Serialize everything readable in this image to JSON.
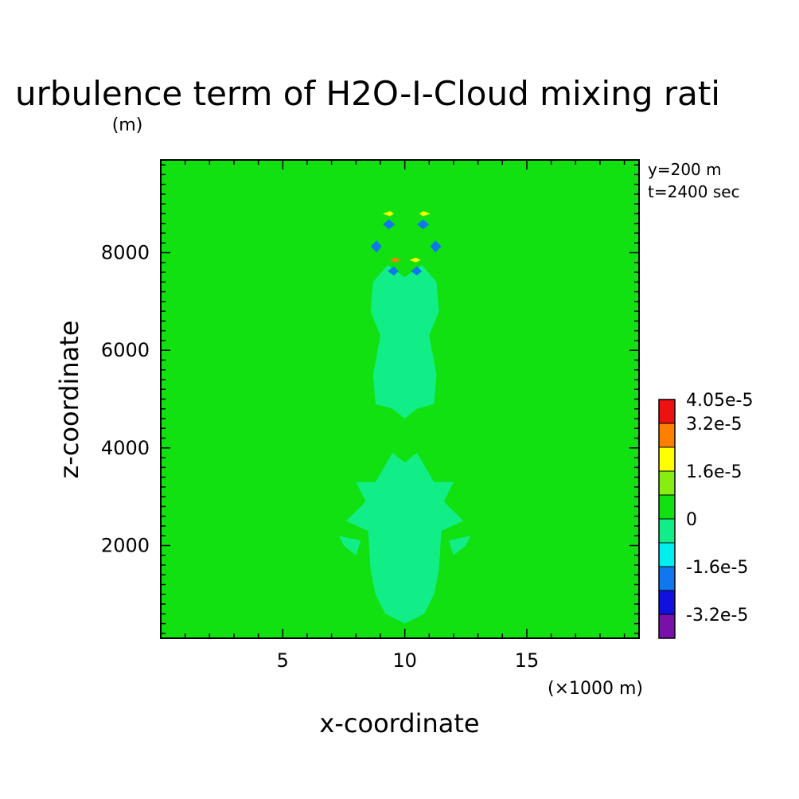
{
  "chart_data": {
    "type": "heatmap",
    "title": "urbulence term of H2O-I-Cloud mixing rati",
    "title_units": "(m)",
    "xlabel": "x-coordinate",
    "ylabel": "z-coordinate",
    "x_units": "(×1000 m)",
    "info": [
      "y=200 m",
      "t=2400 sec"
    ],
    "xlim": [
      0,
      19.6
    ],
    "ylim": [
      100,
      9900
    ],
    "x_ticks": [
      5,
      10,
      15
    ],
    "x_tick_labels": [
      "5",
      "10",
      "15"
    ],
    "y_ticks": [
      2000,
      4000,
      6000,
      8000
    ],
    "y_tick_labels": [
      "2000",
      "4000",
      "6000",
      "8000"
    ],
    "background_level_color": "#11e011",
    "colorbar": {
      "levels": [
        {
          "label": "4.05e-5",
          "color": "#ee1111"
        },
        {
          "label": "3.2e-5",
          "color": "#ff7f00"
        },
        {
          "label": "",
          "color": "#ffff00"
        },
        {
          "label": "1.6e-5",
          "color": "#88ee11"
        },
        {
          "label": "",
          "color": "#11e011"
        },
        {
          "label": "0",
          "color": "#11ee88"
        },
        {
          "label": "",
          "color": "#00eeee"
        },
        {
          "label": "-1.6e-5",
          "color": "#1177ee"
        },
        {
          "label": "",
          "color": "#1111dd"
        },
        {
          "label": "-3.2e-5",
          "color": "#7711aa"
        }
      ]
    },
    "features": [
      {
        "name": "upper-plume",
        "color": "#11ee88",
        "points": [
          [
            8.7,
            7400
          ],
          [
            9.3,
            7750
          ],
          [
            10.0,
            7500
          ],
          [
            10.7,
            7750
          ],
          [
            11.3,
            7400
          ],
          [
            11.4,
            6800
          ],
          [
            11.0,
            6300
          ],
          [
            11.3,
            5500
          ],
          [
            11.2,
            4900
          ],
          [
            10.5,
            4800
          ],
          [
            10.0,
            4600
          ],
          [
            9.5,
            4800
          ],
          [
            8.8,
            4900
          ],
          [
            8.7,
            5500
          ],
          [
            9.0,
            6300
          ],
          [
            8.6,
            6800
          ]
        ]
      },
      {
        "name": "lower-plume",
        "color": "#11ee88",
        "points": [
          [
            9.5,
            3900
          ],
          [
            10.0,
            3700
          ],
          [
            10.5,
            3900
          ],
          [
            11.2,
            3300
          ],
          [
            12.0,
            3300
          ],
          [
            11.6,
            2900
          ],
          [
            12.4,
            2500
          ],
          [
            11.5,
            2300
          ],
          [
            11.4,
            1500
          ],
          [
            11.2,
            1000
          ],
          [
            10.8,
            600
          ],
          [
            10.0,
            400
          ],
          [
            9.2,
            600
          ],
          [
            8.8,
            1000
          ],
          [
            8.6,
            1500
          ],
          [
            8.5,
            2300
          ],
          [
            7.6,
            2500
          ],
          [
            8.4,
            2900
          ],
          [
            8.0,
            3300
          ],
          [
            8.8,
            3300
          ]
        ]
      },
      {
        "name": "left-side-lobe",
        "color": "#11ee88",
        "points": [
          [
            7.3,
            2200
          ],
          [
            8.2,
            2100
          ],
          [
            8.0,
            1800
          ],
          [
            7.5,
            2000
          ]
        ]
      },
      {
        "name": "right-side-lobe",
        "color": "#11ee88",
        "points": [
          [
            12.7,
            2200
          ],
          [
            11.8,
            2100
          ],
          [
            12.0,
            1800
          ],
          [
            12.5,
            2000
          ]
        ]
      },
      {
        "name": "upper-cell-left-warm",
        "color": "#ffff00",
        "points": [
          [
            9.1,
            8800
          ],
          [
            9.4,
            8850
          ],
          [
            9.55,
            8800
          ],
          [
            9.4,
            8750
          ]
        ]
      },
      {
        "name": "upper-cell-left-cold",
        "color": "#1177ee",
        "points": [
          [
            9.1,
            8580
          ],
          [
            9.35,
            8680
          ],
          [
            9.6,
            8580
          ],
          [
            9.35,
            8480
          ]
        ]
      },
      {
        "name": "upper-cell-right-warm",
        "color": "#ffff00",
        "points": [
          [
            10.6,
            8800
          ],
          [
            10.75,
            8850
          ],
          [
            11.05,
            8800
          ],
          [
            10.75,
            8750
          ]
        ]
      },
      {
        "name": "upper-cell-right-cold",
        "color": "#1177ee",
        "points": [
          [
            10.5,
            8580
          ],
          [
            10.75,
            8680
          ],
          [
            11.0,
            8580
          ],
          [
            10.75,
            8480
          ]
        ]
      },
      {
        "name": "mid-cell-left-cold",
        "color": "#1177ee",
        "points": [
          [
            8.6,
            8130
          ],
          [
            8.85,
            8250
          ],
          [
            9.05,
            8130
          ],
          [
            8.85,
            8000
          ]
        ]
      },
      {
        "name": "mid-cell-right-cold",
        "color": "#1177ee",
        "points": [
          [
            11.05,
            8130
          ],
          [
            11.25,
            8250
          ],
          [
            11.5,
            8130
          ],
          [
            11.25,
            8000
          ]
        ]
      },
      {
        "name": "low-cell-left-warm",
        "color": "#ff7f00",
        "points": [
          [
            9.4,
            7850
          ],
          [
            9.6,
            7900
          ],
          [
            9.85,
            7850
          ],
          [
            9.6,
            7800
          ]
        ]
      },
      {
        "name": "low-cell-right-warm",
        "color": "#ffff00",
        "points": [
          [
            10.2,
            7850
          ],
          [
            10.45,
            7900
          ],
          [
            10.65,
            7850
          ],
          [
            10.45,
            7800
          ]
        ]
      },
      {
        "name": "low-cell-left-cold",
        "color": "#1177ee",
        "points": [
          [
            9.3,
            7620
          ],
          [
            9.55,
            7720
          ],
          [
            9.75,
            7620
          ],
          [
            9.55,
            7530
          ]
        ]
      },
      {
        "name": "low-cell-right-cold",
        "color": "#1177ee",
        "points": [
          [
            10.25,
            7620
          ],
          [
            10.5,
            7720
          ],
          [
            10.7,
            7620
          ],
          [
            10.5,
            7530
          ]
        ]
      }
    ]
  }
}
